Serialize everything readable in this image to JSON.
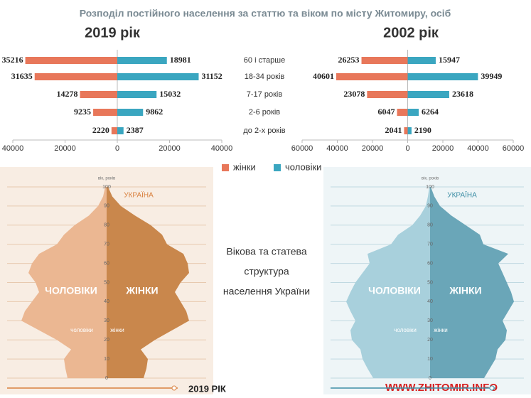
{
  "title": "Розподіл постійного населення за статтю та віком по місту Житомиру, осіб",
  "center_text": [
    "Вікова та статева структура",
    "населення України"
  ],
  "source": "WWW.ZHITOMIR.INFO",
  "chart_data": [
    {
      "type": "butterfly",
      "subtitle": "2019 рік",
      "categories": [
        "60 і старше",
        "18-34 років",
        "7-17 років",
        "2-6 років",
        "до 2-х років"
      ],
      "series": [
        {
          "name": "жінки",
          "color": "#e8775a",
          "values": [
            35216,
            31635,
            14278,
            9235,
            2220
          ]
        },
        {
          "name": "чоловіки",
          "color": "#3aa6c0",
          "values": [
            18981,
            31152,
            15032,
            9862,
            2387
          ]
        }
      ],
      "xlim": [
        -40000,
        40000
      ],
      "xticks": [
        {
          "value": -40000,
          "label": "40000"
        },
        {
          "value": -20000,
          "label": "20000"
        },
        0,
        20000,
        40000
      ]
    },
    {
      "type": "butterfly",
      "subtitle": "2002 рік",
      "series": [
        {
          "color": "#e8775a",
          "values": [
            26253,
            40601,
            23078,
            6047,
            2041
          ]
        },
        {
          "color": "#3aa6c0",
          "values": [
            15947,
            39949,
            23618,
            6264,
            2190
          ]
        }
      ],
      "xlim": [
        -60000,
        60000
      ],
      "xticks": [
        {
          "value": -60000,
          "label": "60000"
        },
        {
          "value": -40000,
          "label": "40000"
        },
        {
          "value": -20000,
          "label": "20000"
        },
        0,
        20000,
        40000,
        60000
      ]
    },
    {
      "type": "pyramid",
      "title": "УКРАЇНА",
      "ylabel": "вік, років",
      "caption": "2019 РІК",
      "left_label": "ЧОЛОВІКИ",
      "right_label": "ЖІНКИ",
      "left_small": "чоловіки",
      "right_small": "жінки",
      "colors": [
        "#ebb792",
        "#c9874c"
      ],
      "accent": "#d9813f",
      "ylim": [
        0,
        100
      ],
      "yticks": [
        0,
        10,
        20,
        30,
        40,
        50,
        60,
        70,
        80,
        90,
        100
      ]
    },
    {
      "type": "pyramid",
      "title": "УКРАЇНА",
      "ylabel": "вік, років",
      "left_label": "ЧОЛОВІКИ",
      "right_label": "ЖІНКИ",
      "left_small": "чоловіки",
      "right_small": "жінки",
      "colors": [
        "#a8d0dc",
        "#6aa6b8"
      ],
      "accent": "#3f8fa6",
      "ylim": [
        0,
        100
      ],
      "yticks": [
        0,
        10,
        20,
        30,
        40,
        50,
        60,
        70,
        80,
        90,
        100
      ]
    }
  ]
}
